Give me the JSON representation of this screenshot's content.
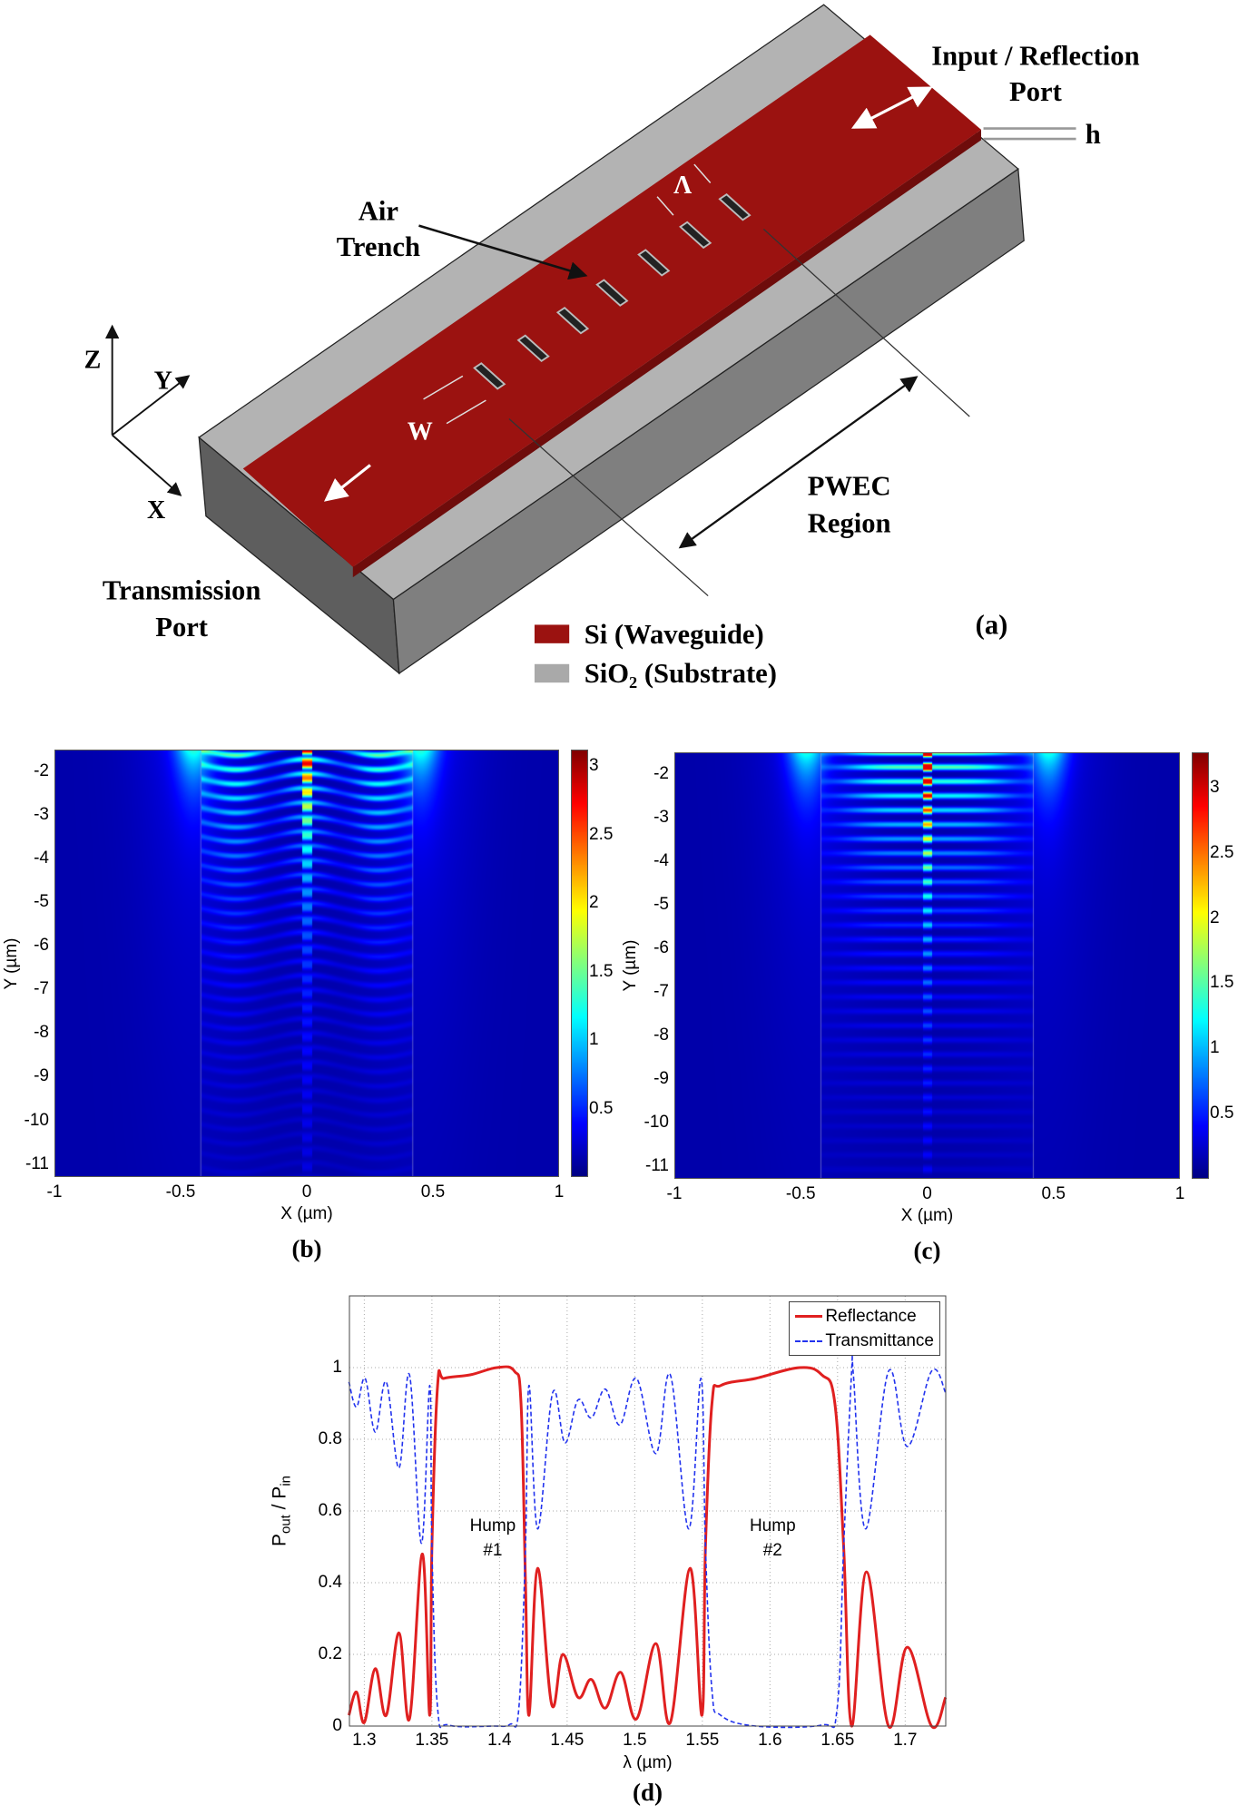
{
  "panel_a": {
    "label": "(a)",
    "air_trench": [
      "Air",
      "Trench"
    ],
    "input_port": [
      "Input / Reflection",
      "Port"
    ],
    "transmission_port": [
      "Transmission",
      "Port"
    ],
    "pwec_region": [
      "PWEC",
      "Region"
    ],
    "h_label": "h",
    "lambda_label": "Λ",
    "w_label": "W",
    "axes": {
      "z": "Z",
      "y": "Y",
      "x": "X"
    },
    "legend": [
      {
        "label": "Si (Waveguide)",
        "color": "#9b1210"
      },
      {
        "label": "SiO₂ (Substrate)",
        "color": "#a9a9a9"
      }
    ],
    "colors": {
      "waveguide": "#9b1210",
      "waveguide_edge": "#6e0c0b",
      "substrate_top": "#b3b3b3",
      "substrate_front": "#7d7d7d",
      "substrate_side": "#5d5d5d"
    }
  },
  "chart_data": [
    {
      "id": "b",
      "type": "heatmap",
      "panel_label": "(b)",
      "xlabel": "X (µm)",
      "ylabel": "Y (µm)",
      "xlim": [
        -1,
        1
      ],
      "ylim": [
        -11.3,
        -1.5
      ],
      "xticks": [
        "-1",
        "-0.5",
        "0",
        "0.5",
        "1"
      ],
      "xtick_values": [
        -1,
        -0.5,
        0,
        0.5,
        1
      ],
      "yticks": [
        "-2",
        "-3",
        "-4",
        "-5",
        "-6",
        "-7",
        "-8",
        "-9",
        "-10",
        "-11"
      ],
      "ytick_values": [
        -2,
        -3,
        -4,
        -5,
        -6,
        -7,
        -8,
        -9,
        -10,
        -11
      ],
      "colorbar": {
        "range": [
          0,
          3.12
        ],
        "ticks": [
          "0.5",
          "1",
          "1.5",
          "2",
          "2.5",
          "3"
        ],
        "tick_values": [
          0.5,
          1,
          1.5,
          2,
          2.5,
          3
        ],
        "colormap": "jet"
      },
      "trench_boundaries_x": [
        -0.42,
        0.42
      ],
      "pattern": "curved"
    },
    {
      "id": "c",
      "type": "heatmap",
      "panel_label": "(c)",
      "xlabel": "X (µm)",
      "ylabel": "Y (µm)",
      "xlim": [
        -1,
        1
      ],
      "ylim": [
        -11.3,
        -1.5
      ],
      "xticks": [
        "-1",
        "-0.5",
        "0",
        "0.5",
        "1"
      ],
      "xtick_values": [
        -1,
        -0.5,
        0,
        0.5,
        1
      ],
      "yticks": [
        "-2",
        "-3",
        "-4",
        "-5",
        "-6",
        "-7",
        "-8",
        "-9",
        "-10",
        "-11"
      ],
      "ytick_values": [
        -2,
        -3,
        -4,
        -5,
        -6,
        -7,
        -8,
        -9,
        -10,
        -11
      ],
      "colorbar": {
        "range": [
          0,
          3.27
        ],
        "ticks": [
          "0.5",
          "1",
          "1.5",
          "2",
          "2.5",
          "3"
        ],
        "tick_values": [
          0.5,
          1,
          1.5,
          2,
          2.5,
          3
        ],
        "colormap": "jet"
      },
      "trench_boundaries_x": [
        -0.42,
        0.42
      ],
      "pattern": "flat"
    },
    {
      "id": "d",
      "type": "line",
      "panel_label": "(d)",
      "xlabel": "λ (µm)",
      "ylabel_parts": [
        "P",
        "out",
        " / P",
        "in"
      ],
      "xlim": [
        1.289,
        1.73
      ],
      "ylim": [
        0,
        1.2
      ],
      "grid": true,
      "xticks": [
        "1.3",
        "1.35",
        "1.4",
        "1.45",
        "1.5",
        "1.55",
        "1.6",
        "1.65",
        "1.7"
      ],
      "xtick_values": [
        1.3,
        1.35,
        1.4,
        1.45,
        1.5,
        1.55,
        1.6,
        1.65,
        1.7
      ],
      "yticks": [
        "0",
        "0.2",
        "0.4",
        "0.6",
        "0.8",
        "1"
      ],
      "ytick_values": [
        0,
        0.2,
        0.4,
        0.6,
        0.8,
        1
      ],
      "legend_position": "top-right",
      "annotations": [
        {
          "text": [
            "Hump",
            "#1"
          ],
          "x": 1.395,
          "y": 0.5
        },
        {
          "text": [
            "Hump",
            "#2"
          ],
          "x": 1.602,
          "y": 0.5
        }
      ],
      "series": [
        {
          "name": "Reflectance",
          "color": "#e02020",
          "style": "solid",
          "x": [
            1.2886,
            1.2942,
            1.3,
            1.3081,
            1.3162,
            1.3256,
            1.3334,
            1.3429,
            1.3484,
            1.35,
            1.3542,
            1.3591,
            1.3786,
            1.3981,
            1.411,
            1.4159,
            1.4192,
            1.4218,
            1.4282,
            1.4386,
            1.4468,
            1.4581,
            1.4679,
            1.4782,
            1.4896,
            1.5013,
            1.5156,
            1.5263,
            1.5409,
            1.5497,
            1.5523,
            1.5571,
            1.5636,
            1.5896,
            1.622,
            1.6383,
            1.648,
            1.6545,
            1.6604,
            1.6714,
            1.6877,
            1.7016,
            1.7195,
            1.7299
          ],
          "y": [
            0.03,
            0.095,
            0.01,
            0.16,
            0.03,
            0.26,
            0.02,
            0.48,
            0.03,
            0.5,
            0.95,
            0.97,
            0.98,
            1.0,
            0.99,
            0.9,
            0.4,
            0.03,
            0.44,
            0.06,
            0.2,
            0.08,
            0.13,
            0.05,
            0.15,
            0.02,
            0.23,
            0.01,
            0.44,
            0.03,
            0.5,
            0.9,
            0.95,
            0.97,
            1.0,
            0.98,
            0.9,
            0.5,
            0.0,
            0.43,
            0.0,
            0.22,
            0.0,
            0.08
          ]
        },
        {
          "name": "Transmittance",
          "color": "#2233ee",
          "style": "dashed",
          "x": [
            1.2886,
            1.2942,
            1.3006,
            1.3081,
            1.3162,
            1.3256,
            1.3334,
            1.3422,
            1.3484,
            1.35,
            1.3542,
            1.3623,
            1.3948,
            1.4078,
            1.4143,
            1.4192,
            1.4218,
            1.4282,
            1.4393,
            1.4484,
            1.4581,
            1.4679,
            1.4782,
            1.489,
            1.5013,
            1.5156,
            1.5263,
            1.5399,
            1.549,
            1.5523,
            1.5571,
            1.5636,
            1.5896,
            1.6383,
            1.6497,
            1.6545,
            1.6604,
            1.6617,
            1.6708,
            1.6877,
            1.7016,
            1.7195,
            1.7299
          ],
          "y": [
            0.96,
            0.89,
            0.97,
            0.82,
            0.96,
            0.72,
            0.98,
            0.51,
            0.95,
            0.5,
            0.05,
            0.003,
            0.0,
            0.005,
            0.05,
            0.5,
            0.95,
            0.55,
            0.93,
            0.79,
            0.91,
            0.86,
            0.94,
            0.84,
            0.97,
            0.76,
            0.98,
            0.55,
            0.97,
            0.5,
            0.1,
            0.03,
            0.0,
            0.003,
            0.05,
            0.5,
            0.99,
            0.98,
            0.55,
            0.99,
            0.78,
            0.99,
            0.93
          ]
        }
      ]
    }
  ]
}
